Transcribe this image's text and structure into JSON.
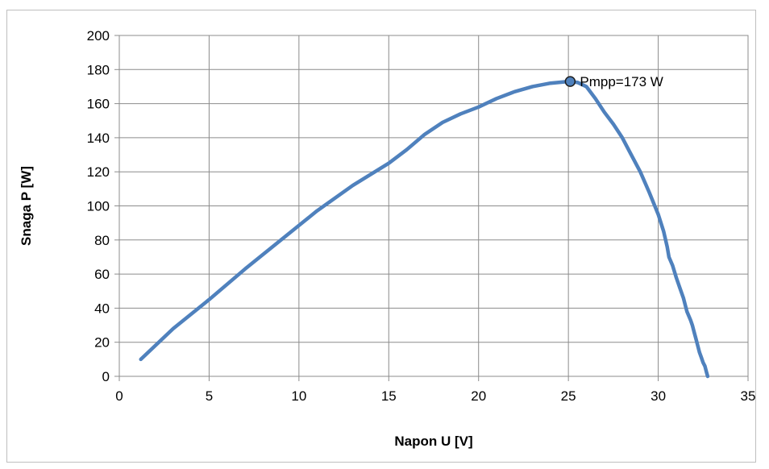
{
  "chart_data": {
    "type": "line",
    "title": "",
    "xlabel": "Napon U [V]",
    "ylabel": "Snaga P [W]",
    "xlim": [
      0,
      35
    ],
    "ylim": [
      0,
      200
    ],
    "xticks": [
      0,
      5,
      10,
      15,
      20,
      25,
      30,
      35
    ],
    "yticks": [
      0,
      20,
      40,
      60,
      80,
      100,
      120,
      140,
      160,
      180,
      200
    ],
    "grid": true,
    "legend": "none",
    "series_color": "#4f81bd",
    "marker_color": "#4f81bd",
    "series": [
      {
        "x": [
          1.2,
          3,
          5,
          7,
          9,
          11,
          13,
          15,
          16,
          17,
          18,
          19,
          20,
          21,
          22,
          23,
          24,
          25,
          25.5,
          26,
          26.5,
          27,
          27.5,
          28,
          28.5,
          29,
          29.5,
          30,
          30.3,
          30.5,
          30.6,
          30.8,
          31,
          31.2,
          31.4,
          31.5,
          31.6,
          31.8,
          31.9,
          32,
          32.1,
          32.2,
          32.3,
          32.4,
          32.5,
          32.6,
          32.7,
          32.75
        ],
        "y": [
          10,
          28,
          45,
          63,
          80,
          97,
          112,
          125,
          133,
          142,
          149,
          154,
          158,
          163,
          167,
          170,
          172,
          173,
          172.5,
          170,
          163,
          155,
          148,
          140,
          130,
          120,
          108,
          95,
          85,
          76,
          70,
          65,
          58,
          52,
          46,
          42,
          38,
          33,
          30,
          26,
          22,
          18,
          14,
          11,
          8,
          6,
          2,
          0
        ]
      }
    ],
    "annotations": [
      {
        "x": 25.1,
        "y": 173,
        "text": "Pmpp=173 W"
      }
    ]
  }
}
